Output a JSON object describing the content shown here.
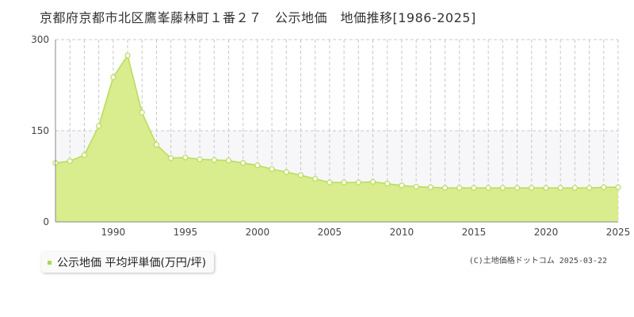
{
  "title": "京都府京都市北区鷹峯藤林町１番２７　公示地価　地価推移[1986-2025]",
  "legend": {
    "label": "公示地価 平均坪単価(万円/坪)",
    "color": "#a8d94e"
  },
  "credit": "(C)土地価格ドットコム 2025-03-22",
  "colors": {
    "fill": "#d9ec8e",
    "line": "#b8dc5a",
    "marker_fill": "#ffffff",
    "grid": "#c8c8c8",
    "band": "#f7f7fa"
  },
  "chart_data": {
    "type": "area",
    "x": [
      1986,
      1987,
      1988,
      1989,
      1990,
      1991,
      1992,
      1993,
      1994,
      1995,
      1996,
      1997,
      1998,
      1999,
      2000,
      2001,
      2002,
      2003,
      2004,
      2005,
      2006,
      2007,
      2008,
      2009,
      2010,
      2011,
      2012,
      2013,
      2014,
      2015,
      2016,
      2017,
      2018,
      2019,
      2020,
      2021,
      2022,
      2023,
      2024,
      2025
    ],
    "series": [
      {
        "values": [
          97,
          100,
          110,
          158,
          238,
          274,
          180,
          127,
          105,
          106,
          103,
          102,
          101,
          97,
          93,
          87,
          82,
          77,
          71,
          65,
          65,
          65,
          66,
          63,
          60,
          58,
          57,
          56,
          56,
          56,
          56,
          56,
          56,
          56,
          56,
          56,
          56,
          56,
          57,
          57
        ]
      }
    ],
    "ylim": [
      0,
      300
    ],
    "yticks": [
      0,
      150,
      300
    ],
    "xticks": [
      1990,
      1995,
      2000,
      2005,
      2010,
      2015,
      2020,
      2025
    ],
    "grid": true,
    "legend_position": "bottom-left"
  }
}
